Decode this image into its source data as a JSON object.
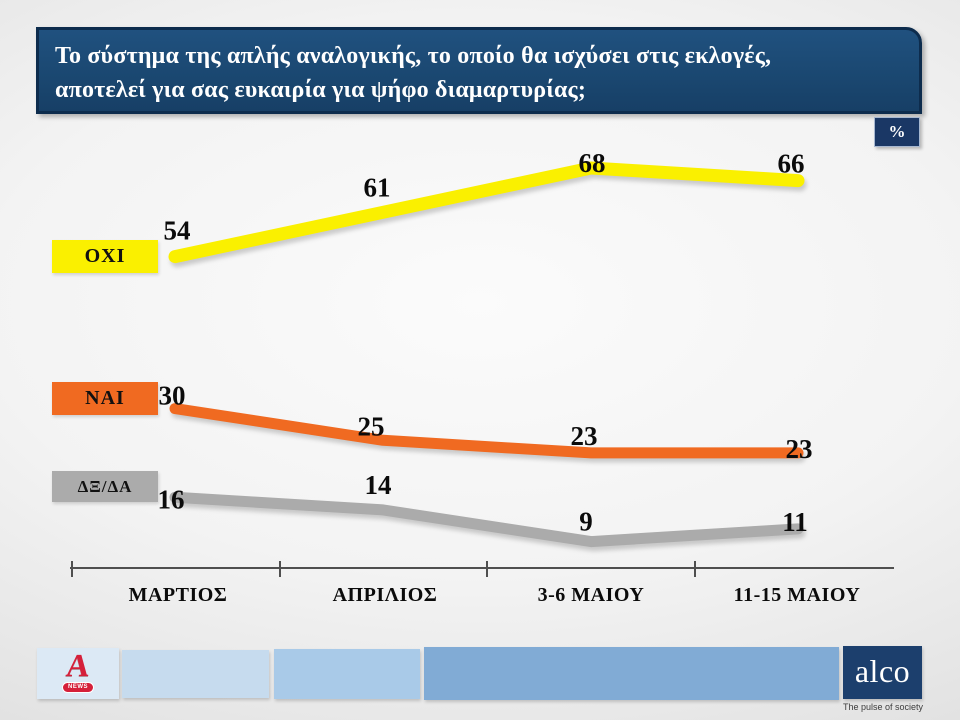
{
  "header": {
    "line1": "Το σύστημα της απλής αναλογικής, το οποίο θα ισχύσει στις εκλογές,",
    "line2": "αποτελεί για σας ευκαιρία για ψήφο διαμαρτυρίας;"
  },
  "percent_badge": "%",
  "chart_data": {
    "type": "line",
    "categories": [
      "ΜΑΡΤΙΟΣ",
      "ΑΠΡΙΛΙΟΣ",
      "3-6 ΜΑΙΟΥ",
      "11-15 ΜΑΙΟΥ"
    ],
    "series": [
      {
        "name": "ΟΧΙ",
        "color": "#FAF000",
        "values": [
          54,
          61,
          68,
          66
        ]
      },
      {
        "name": "ΝΑΙ",
        "color": "#F06A21",
        "values": [
          30,
          25,
          23,
          23
        ]
      },
      {
        "name": "ΔΞ/ΔΑ",
        "color": "#ABABAB",
        "values": [
          16,
          14,
          9,
          11
        ]
      }
    ],
    "unit": "%",
    "ylim": [
      0,
      80
    ],
    "grid": false,
    "legend_position": "left",
    "value_labels": true
  },
  "footer": {
    "alpha_news_label": "NEWS",
    "alpha_letter": "A",
    "alco_logo": "alco",
    "alco_tagline": "The pulse of society"
  },
  "colors": {
    "header_bg": "#1A4770",
    "badge_bg": "#1A3765",
    "alco_bg": "#1C3F6D",
    "footer_segments": [
      "#DCE9F5",
      "#C6DBEE",
      "#A9CAE8",
      "#81ABD5"
    ]
  }
}
